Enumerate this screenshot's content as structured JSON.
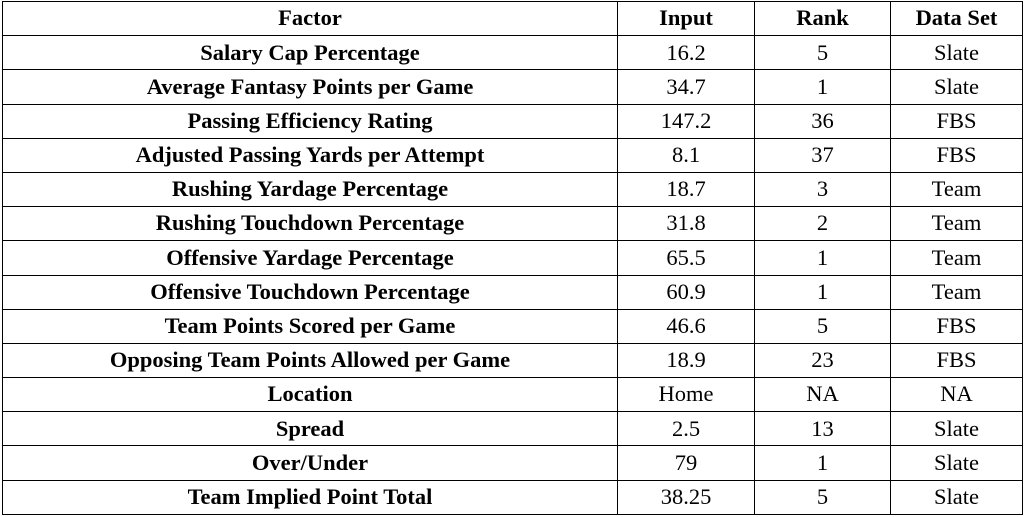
{
  "table": {
    "headers": [
      "Factor",
      "Input",
      "Rank",
      "Data Set"
    ],
    "rows": [
      {
        "factor": "Salary Cap Percentage",
        "input": "16.2",
        "rank": "5",
        "data_set": "Slate"
      },
      {
        "factor": "Average Fantasy Points per Game",
        "input": "34.7",
        "rank": "1",
        "data_set": "Slate"
      },
      {
        "factor": "Passing Efficiency Rating",
        "input": "147.2",
        "rank": "36",
        "data_set": "FBS"
      },
      {
        "factor": "Adjusted Passing Yards per Attempt",
        "input": "8.1",
        "rank": "37",
        "data_set": "FBS"
      },
      {
        "factor": "Rushing Yardage Percentage",
        "input": "18.7",
        "rank": "3",
        "data_set": "Team"
      },
      {
        "factor": "Rushing Touchdown Percentage",
        "input": "31.8",
        "rank": "2",
        "data_set": "Team"
      },
      {
        "factor": "Offensive Yardage Percentage",
        "input": "65.5",
        "rank": "1",
        "data_set": "Team"
      },
      {
        "factor": "Offensive Touchdown Percentage",
        "input": "60.9",
        "rank": "1",
        "data_set": "Team"
      },
      {
        "factor": "Team Points Scored per Game",
        "input": "46.6",
        "rank": "5",
        "data_set": "FBS"
      },
      {
        "factor": "Opposing Team Points Allowed per Game",
        "input": "18.9",
        "rank": "23",
        "data_set": "FBS"
      },
      {
        "factor": "Location",
        "input": "Home",
        "rank": "NA",
        "data_set": "NA"
      },
      {
        "factor": "Spread",
        "input": "2.5",
        "rank": "13",
        "data_set": "Slate"
      },
      {
        "factor": "Over/Under",
        "input": "79",
        "rank": "1",
        "data_set": "Slate"
      },
      {
        "factor": "Team Implied Point Total",
        "input": "38.25",
        "rank": "5",
        "data_set": "Slate"
      }
    ]
  }
}
